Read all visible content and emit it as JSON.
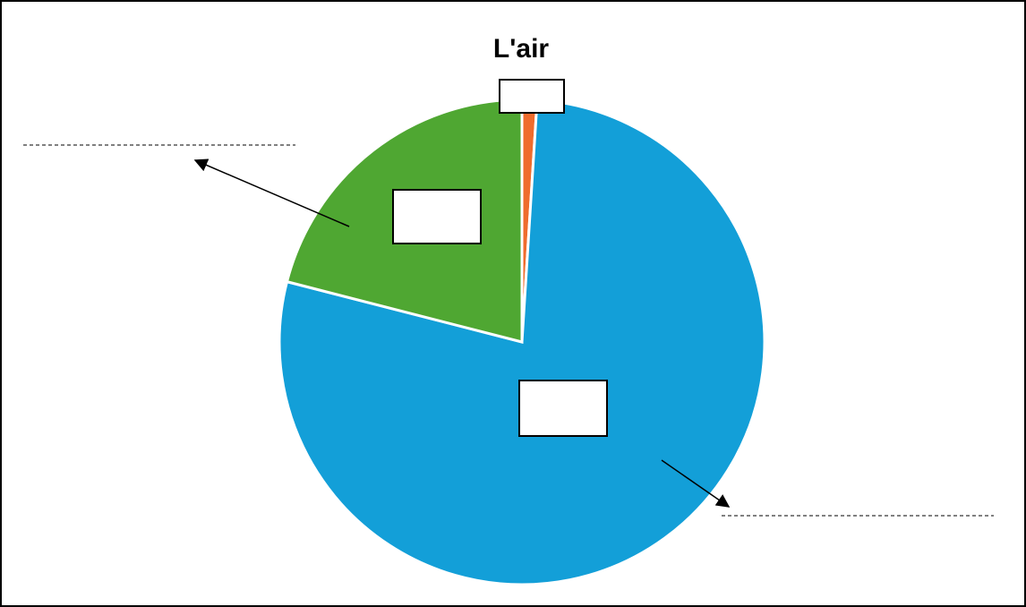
{
  "chart_data": {
    "type": "pie",
    "title": "L'air",
    "categories": [
      "",
      "",
      ""
    ],
    "values": [
      78,
      21,
      1
    ],
    "colors": [
      "#139fd8",
      "#4fa732",
      "#ef6c2d"
    ],
    "slice_labels": [
      "",
      "",
      ""
    ],
    "legend": "none"
  }
}
